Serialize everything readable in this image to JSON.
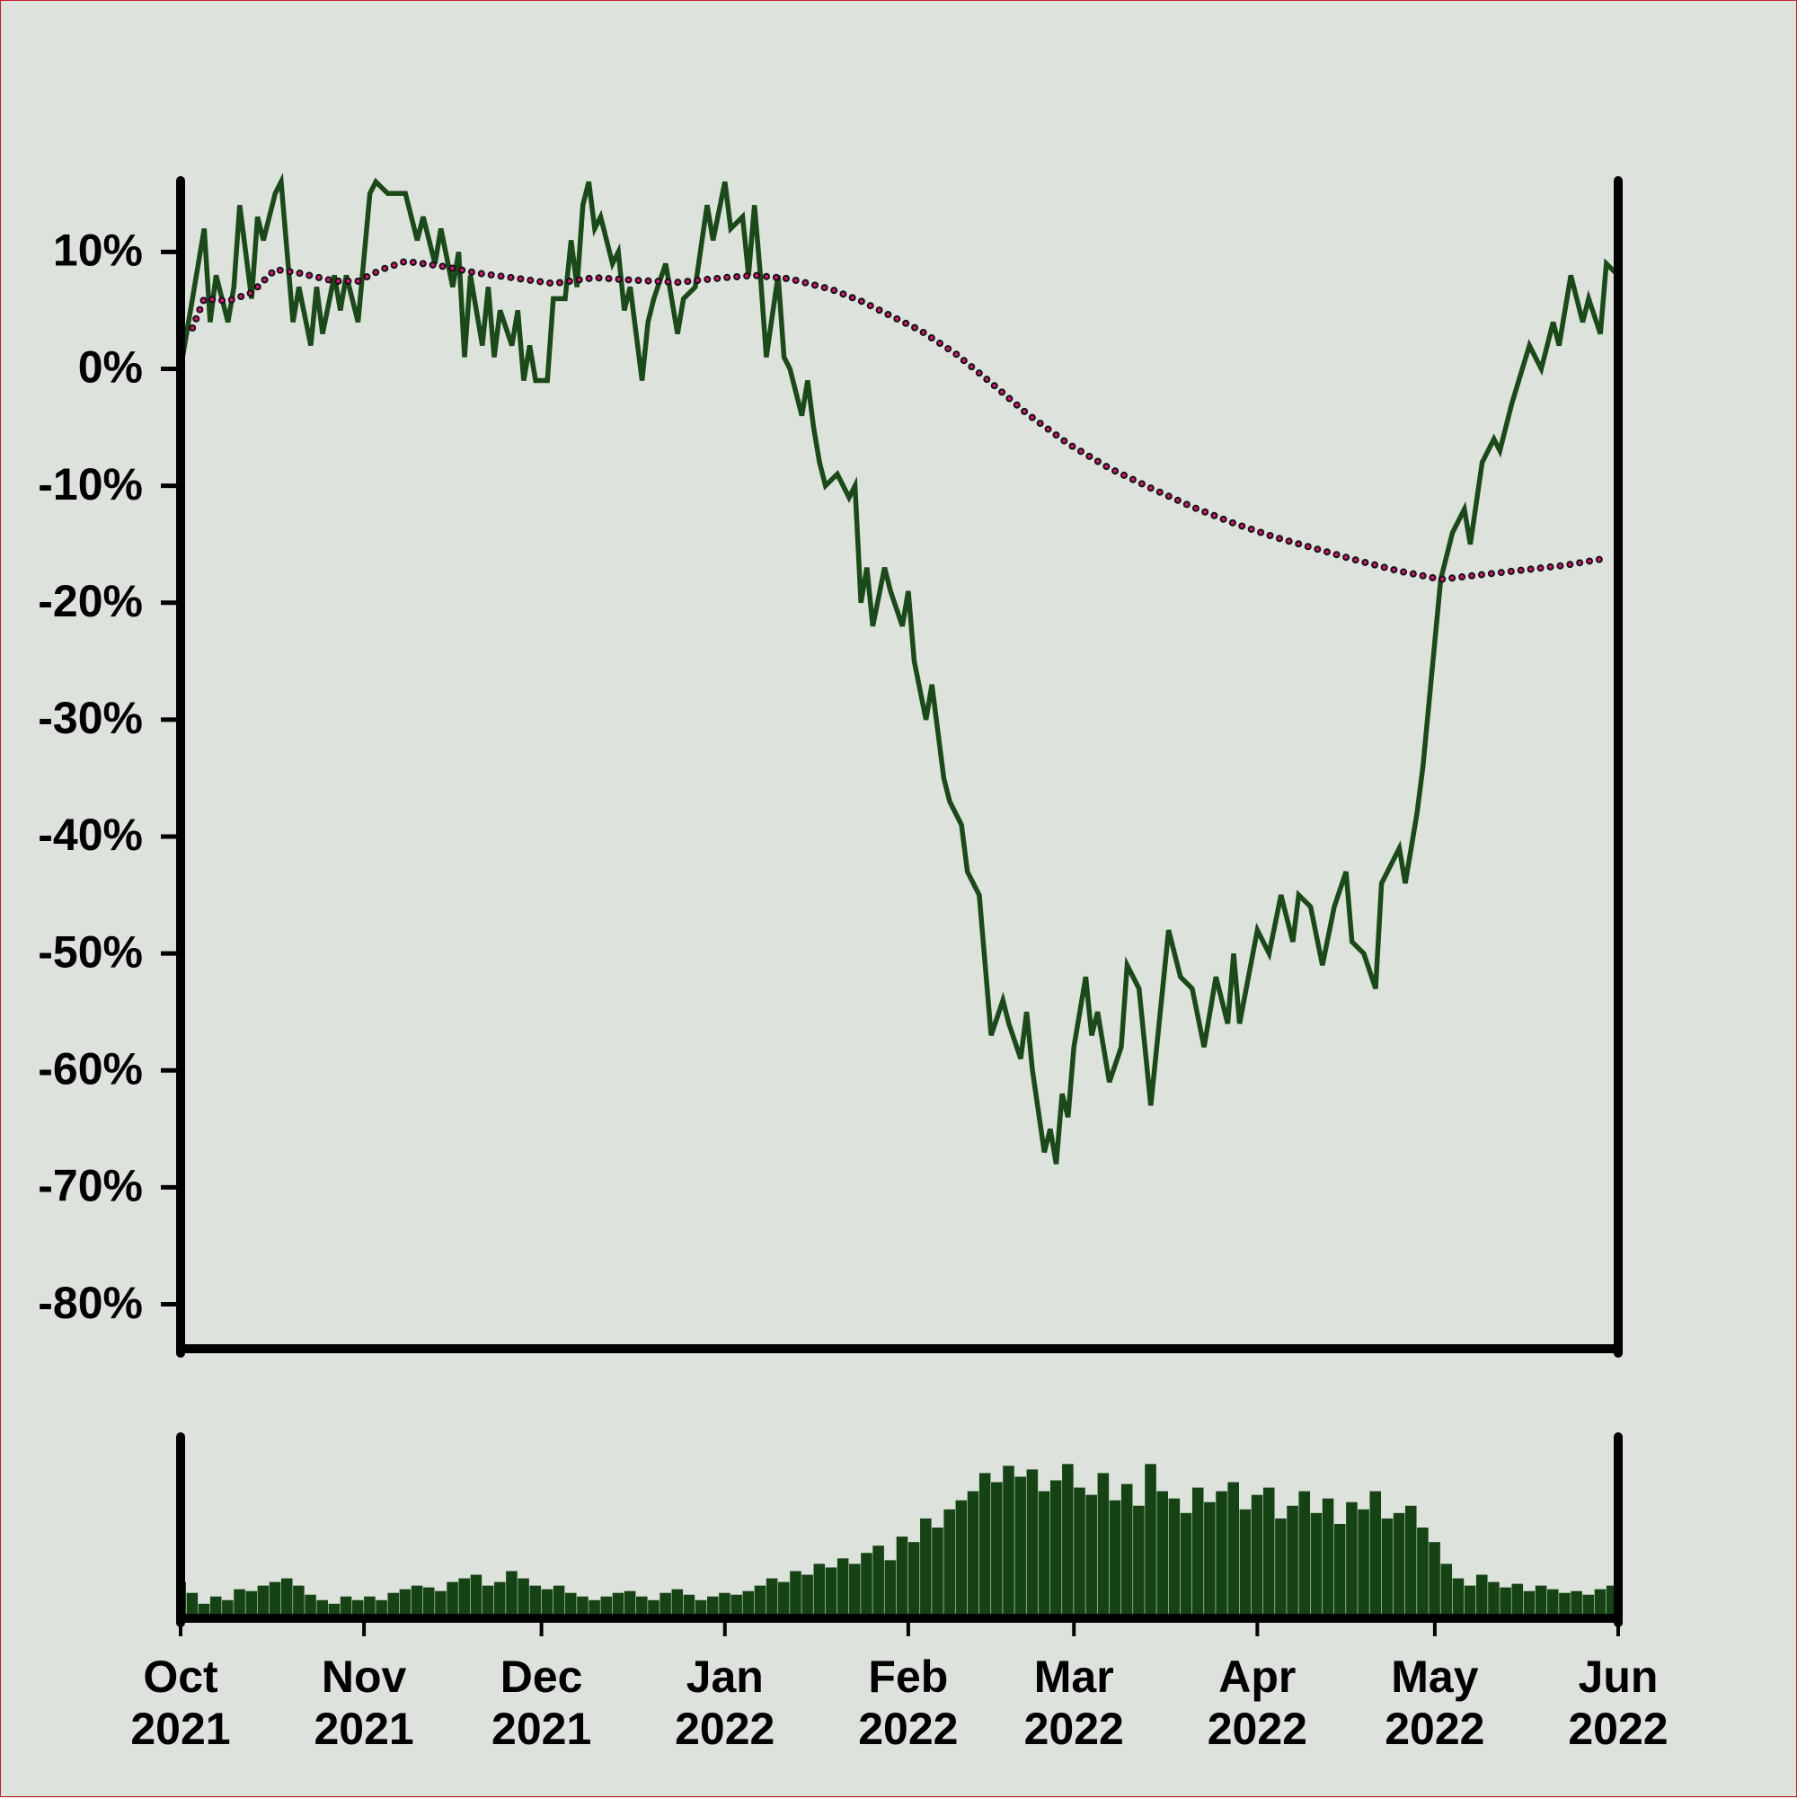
{
  "chart_data": [
    {
      "type": "line",
      "xlim": [
        0,
        243
      ],
      "ylim": [
        -83.8,
        16.1
      ],
      "yticks": [
        {
          "value": 10,
          "label": "10%"
        },
        {
          "value": 0,
          "label": "0%"
        },
        {
          "value": -10,
          "label": "-10%"
        },
        {
          "value": -20,
          "label": "-20%"
        },
        {
          "value": -30,
          "label": "-30%"
        },
        {
          "value": -40,
          "label": "-40%"
        },
        {
          "value": -50,
          "label": "-50%"
        },
        {
          "value": -60,
          "label": "-60%"
        },
        {
          "value": -70,
          "label": "-70%"
        },
        {
          "value": -80,
          "label": "-80%"
        }
      ],
      "series": [
        {
          "color": "#1a4a18",
          "style": "solid",
          "x": [
            0,
            2,
            4,
            5,
            6,
            8,
            9,
            10,
            12,
            13,
            14,
            16,
            17,
            18,
            19,
            20,
            22,
            23,
            24,
            26,
            27,
            28,
            30,
            32,
            33,
            35,
            38,
            40,
            41,
            43,
            44,
            46,
            47,
            48,
            49,
            51,
            52,
            53,
            54,
            56,
            57,
            58,
            59,
            60,
            62,
            63,
            65,
            66,
            67,
            68,
            69,
            70,
            71,
            73,
            74,
            75,
            76,
            78,
            79,
            80,
            82,
            84,
            85,
            87,
            89,
            90,
            92,
            93,
            95,
            96,
            97,
            98,
            99,
            101,
            102,
            103,
            105,
            106,
            107,
            108,
            109,
            111,
            113,
            114,
            115,
            116,
            117,
            119,
            120,
            122,
            123,
            124,
            126,
            127,
            129,
            130,
            132,
            133,
            135,
            137,
            139,
            140,
            142,
            143,
            144,
            146,
            147,
            148,
            149,
            150,
            151,
            153,
            154,
            155,
            157,
            159,
            160,
            162,
            164,
            166,
            167,
            169,
            171,
            173,
            175,
            177,
            178,
            179,
            182,
            184,
            186,
            188,
            189,
            191,
            193,
            195,
            197,
            198,
            200,
            202,
            203,
            206,
            207,
            209,
            210,
            213,
            215,
            217,
            218,
            220,
            222,
            223,
            225,
            228,
            230,
            232,
            233,
            235,
            237,
            238,
            240,
            241,
            243
          ],
          "values": [
            0,
            6,
            12,
            4,
            8,
            4,
            7,
            14,
            6,
            13,
            11,
            15,
            16,
            10,
            4,
            7,
            2,
            7,
            3,
            8,
            5,
            8,
            4,
            15,
            16,
            15,
            15,
            11,
            13,
            9,
            12,
            7,
            10,
            1,
            8,
            2,
            7,
            1,
            5,
            2,
            5,
            -1,
            2,
            -1,
            -1,
            6,
            6,
            11,
            7,
            14,
            16,
            12,
            13,
            9,
            10,
            5,
            7,
            -1,
            4,
            6,
            9,
            3,
            6,
            7,
            14,
            11,
            16,
            12,
            13,
            8,
            14,
            8,
            1,
            8,
            1,
            0,
            -4,
            -1,
            -5,
            -8,
            -10,
            -9,
            -11,
            -10,
            -20,
            -17,
            -22,
            -17,
            -19,
            -22,
            -19,
            -25,
            -30,
            -27,
            -35,
            -37,
            -39,
            -43,
            -45,
            -57,
            -54,
            -56,
            -59,
            -55,
            -60,
            -67,
            -65,
            -68,
            -62,
            -64,
            -58,
            -52,
            -57,
            -55,
            -61,
            -58,
            -51,
            -53,
            -63,
            -53,
            -48,
            -52,
            -53,
            -58,
            -52,
            -56,
            -50,
            -56,
            -48,
            -50,
            -45,
            -49,
            -45,
            -46,
            -51,
            -46,
            -43,
            -49,
            -50,
            -53,
            -44,
            -41,
            -44,
            -38,
            -34,
            -18,
            -14,
            -12,
            -15,
            -8,
            -6,
            -7,
            -3,
            2,
            0,
            4,
            2,
            8,
            4,
            6,
            3,
            9,
            8
          ]
        },
        {
          "color": "#e0107a",
          "style": "dotted",
          "x": [
            2,
            4,
            8,
            12,
            16,
            20,
            26,
            30,
            34,
            38,
            44,
            50,
            56,
            63,
            70,
            76,
            84,
            92,
            97,
            103,
            110,
            115,
            121,
            125,
            131,
            137,
            143,
            150,
            157,
            164,
            171,
            178,
            185,
            192,
            199,
            206,
            213,
            220,
            227,
            234,
            241
          ],
          "values": [
            3.5,
            6,
            5.8,
            6.5,
            8.5,
            8.2,
            7.5,
            7.5,
            8.5,
            9.2,
            8.8,
            8.2,
            7.8,
            7.3,
            7.8,
            7.6,
            7.4,
            7.8,
            8,
            7.7,
            6.8,
            5.8,
            4.3,
            3.3,
            1.3,
            -1.2,
            -3.8,
            -6.4,
            -8.5,
            -10.2,
            -11.8,
            -13.2,
            -14.4,
            -15.4,
            -16.4,
            -17.3,
            -18,
            -17.6,
            -17.2,
            -16.8,
            -16.2
          ]
        }
      ]
    },
    {
      "type": "bar",
      "color": "#154314",
      "xlim": [
        0,
        243
      ],
      "ylim": [
        0,
        100
      ],
      "xticks": [
        {
          "value": 0,
          "label": "Oct 2021"
        },
        {
          "value": 31,
          "label": "Nov 2021"
        },
        {
          "value": 61,
          "label": "Dec 2021"
        },
        {
          "value": 92,
          "label": "Jan 2022"
        },
        {
          "value": 123,
          "label": "Feb 2022"
        },
        {
          "value": 151,
          "label": "Mar 2022"
        },
        {
          "value": 182,
          "label": "Apr 2022"
        },
        {
          "value": 212,
          "label": "May 2022"
        },
        {
          "value": 243,
          "label": "Jun 2022"
        }
      ],
      "x": [
        0,
        2,
        4,
        6,
        8,
        10,
        12,
        14,
        16,
        18,
        20,
        22,
        24,
        26,
        28,
        30,
        32,
        34,
        36,
        38,
        40,
        42,
        44,
        46,
        48,
        50,
        52,
        54,
        56,
        58,
        60,
        62,
        64,
        66,
        68,
        70,
        72,
        74,
        76,
        78,
        80,
        82,
        84,
        86,
        88,
        90,
        92,
        94,
        96,
        98,
        100,
        102,
        104,
        106,
        108,
        110,
        112,
        114,
        116,
        118,
        120,
        122,
        124,
        126,
        128,
        130,
        132,
        134,
        136,
        138,
        140,
        142,
        144,
        146,
        148,
        150,
        152,
        154,
        156,
        158,
        160,
        162,
        164,
        166,
        168,
        170,
        172,
        174,
        176,
        178,
        180,
        182,
        184,
        186,
        188,
        190,
        192,
        194,
        196,
        198,
        200,
        202,
        204,
        206,
        208,
        210,
        212,
        214,
        216,
        218,
        220,
        222,
        224,
        226,
        228,
        230,
        232,
        234,
        236,
        238,
        240,
        242
      ],
      "values": [
        20,
        14,
        8,
        12,
        10,
        16,
        15,
        18,
        20,
        22,
        18,
        13,
        10,
        8,
        12,
        10,
        12,
        10,
        14,
        16,
        18,
        17,
        15,
        20,
        22,
        24,
        18,
        20,
        26,
        22,
        18,
        16,
        18,
        14,
        12,
        10,
        12,
        14,
        15,
        12,
        10,
        14,
        16,
        13,
        10,
        12,
        14,
        13,
        15,
        18,
        22,
        20,
        26,
        24,
        30,
        28,
        33,
        30,
        36,
        40,
        32,
        45,
        42,
        55,
        50,
        60,
        65,
        70,
        80,
        75,
        84,
        78,
        82,
        70,
        76,
        85,
        72,
        68,
        80,
        65,
        74,
        62,
        85,
        70,
        66,
        58,
        72,
        64,
        70,
        75,
        60,
        68,
        72,
        55,
        62,
        70,
        58,
        66,
        52,
        64,
        60,
        70,
        55,
        58,
        62,
        50,
        42,
        30,
        22,
        18,
        24,
        20,
        17,
        19,
        15,
        18,
        16,
        14,
        15,
        13,
        16,
        18
      ]
    }
  ]
}
